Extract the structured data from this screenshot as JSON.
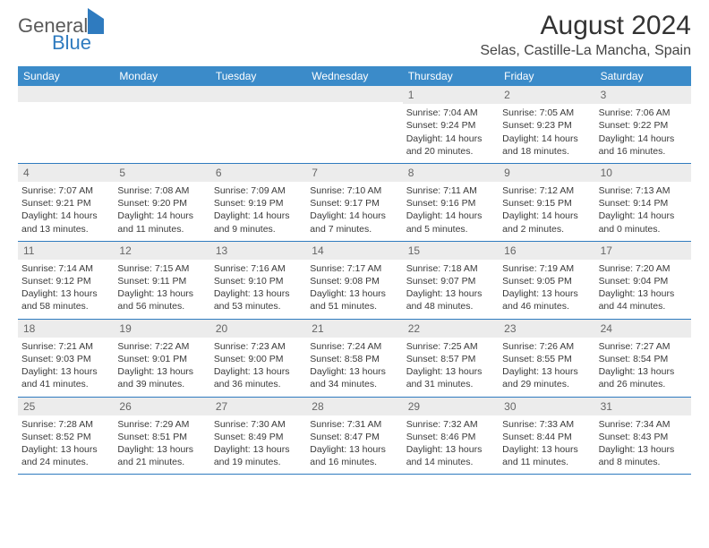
{
  "logo": {
    "line1": "General",
    "line2": "Blue"
  },
  "title": "August 2024",
  "location": "Selas, Castille-La Mancha, Spain",
  "weekdays": [
    "Sunday",
    "Monday",
    "Tuesday",
    "Wednesday",
    "Thursday",
    "Friday",
    "Saturday"
  ],
  "colors": {
    "header_bar": "#3b8bc9",
    "week_divider": "#2f7bbf",
    "daynum_bg": "#ececec",
    "logo_blue": "#2f7bbf"
  },
  "weeks": [
    [
      {
        "n": "",
        "sr": "",
        "ss": "",
        "dl": ""
      },
      {
        "n": "",
        "sr": "",
        "ss": "",
        "dl": ""
      },
      {
        "n": "",
        "sr": "",
        "ss": "",
        "dl": ""
      },
      {
        "n": "",
        "sr": "",
        "ss": "",
        "dl": ""
      },
      {
        "n": "1",
        "sr": "Sunrise: 7:04 AM",
        "ss": "Sunset: 9:24 PM",
        "dl": "Daylight: 14 hours and 20 minutes."
      },
      {
        "n": "2",
        "sr": "Sunrise: 7:05 AM",
        "ss": "Sunset: 9:23 PM",
        "dl": "Daylight: 14 hours and 18 minutes."
      },
      {
        "n": "3",
        "sr": "Sunrise: 7:06 AM",
        "ss": "Sunset: 9:22 PM",
        "dl": "Daylight: 14 hours and 16 minutes."
      }
    ],
    [
      {
        "n": "4",
        "sr": "Sunrise: 7:07 AM",
        "ss": "Sunset: 9:21 PM",
        "dl": "Daylight: 14 hours and 13 minutes."
      },
      {
        "n": "5",
        "sr": "Sunrise: 7:08 AM",
        "ss": "Sunset: 9:20 PM",
        "dl": "Daylight: 14 hours and 11 minutes."
      },
      {
        "n": "6",
        "sr": "Sunrise: 7:09 AM",
        "ss": "Sunset: 9:19 PM",
        "dl": "Daylight: 14 hours and 9 minutes."
      },
      {
        "n": "7",
        "sr": "Sunrise: 7:10 AM",
        "ss": "Sunset: 9:17 PM",
        "dl": "Daylight: 14 hours and 7 minutes."
      },
      {
        "n": "8",
        "sr": "Sunrise: 7:11 AM",
        "ss": "Sunset: 9:16 PM",
        "dl": "Daylight: 14 hours and 5 minutes."
      },
      {
        "n": "9",
        "sr": "Sunrise: 7:12 AM",
        "ss": "Sunset: 9:15 PM",
        "dl": "Daylight: 14 hours and 2 minutes."
      },
      {
        "n": "10",
        "sr": "Sunrise: 7:13 AM",
        "ss": "Sunset: 9:14 PM",
        "dl": "Daylight: 14 hours and 0 minutes."
      }
    ],
    [
      {
        "n": "11",
        "sr": "Sunrise: 7:14 AM",
        "ss": "Sunset: 9:12 PM",
        "dl": "Daylight: 13 hours and 58 minutes."
      },
      {
        "n": "12",
        "sr": "Sunrise: 7:15 AM",
        "ss": "Sunset: 9:11 PM",
        "dl": "Daylight: 13 hours and 56 minutes."
      },
      {
        "n": "13",
        "sr": "Sunrise: 7:16 AM",
        "ss": "Sunset: 9:10 PM",
        "dl": "Daylight: 13 hours and 53 minutes."
      },
      {
        "n": "14",
        "sr": "Sunrise: 7:17 AM",
        "ss": "Sunset: 9:08 PM",
        "dl": "Daylight: 13 hours and 51 minutes."
      },
      {
        "n": "15",
        "sr": "Sunrise: 7:18 AM",
        "ss": "Sunset: 9:07 PM",
        "dl": "Daylight: 13 hours and 48 minutes."
      },
      {
        "n": "16",
        "sr": "Sunrise: 7:19 AM",
        "ss": "Sunset: 9:05 PM",
        "dl": "Daylight: 13 hours and 46 minutes."
      },
      {
        "n": "17",
        "sr": "Sunrise: 7:20 AM",
        "ss": "Sunset: 9:04 PM",
        "dl": "Daylight: 13 hours and 44 minutes."
      }
    ],
    [
      {
        "n": "18",
        "sr": "Sunrise: 7:21 AM",
        "ss": "Sunset: 9:03 PM",
        "dl": "Daylight: 13 hours and 41 minutes."
      },
      {
        "n": "19",
        "sr": "Sunrise: 7:22 AM",
        "ss": "Sunset: 9:01 PM",
        "dl": "Daylight: 13 hours and 39 minutes."
      },
      {
        "n": "20",
        "sr": "Sunrise: 7:23 AM",
        "ss": "Sunset: 9:00 PM",
        "dl": "Daylight: 13 hours and 36 minutes."
      },
      {
        "n": "21",
        "sr": "Sunrise: 7:24 AM",
        "ss": "Sunset: 8:58 PM",
        "dl": "Daylight: 13 hours and 34 minutes."
      },
      {
        "n": "22",
        "sr": "Sunrise: 7:25 AM",
        "ss": "Sunset: 8:57 PM",
        "dl": "Daylight: 13 hours and 31 minutes."
      },
      {
        "n": "23",
        "sr": "Sunrise: 7:26 AM",
        "ss": "Sunset: 8:55 PM",
        "dl": "Daylight: 13 hours and 29 minutes."
      },
      {
        "n": "24",
        "sr": "Sunrise: 7:27 AM",
        "ss": "Sunset: 8:54 PM",
        "dl": "Daylight: 13 hours and 26 minutes."
      }
    ],
    [
      {
        "n": "25",
        "sr": "Sunrise: 7:28 AM",
        "ss": "Sunset: 8:52 PM",
        "dl": "Daylight: 13 hours and 24 minutes."
      },
      {
        "n": "26",
        "sr": "Sunrise: 7:29 AM",
        "ss": "Sunset: 8:51 PM",
        "dl": "Daylight: 13 hours and 21 minutes."
      },
      {
        "n": "27",
        "sr": "Sunrise: 7:30 AM",
        "ss": "Sunset: 8:49 PM",
        "dl": "Daylight: 13 hours and 19 minutes."
      },
      {
        "n": "28",
        "sr": "Sunrise: 7:31 AM",
        "ss": "Sunset: 8:47 PM",
        "dl": "Daylight: 13 hours and 16 minutes."
      },
      {
        "n": "29",
        "sr": "Sunrise: 7:32 AM",
        "ss": "Sunset: 8:46 PM",
        "dl": "Daylight: 13 hours and 14 minutes."
      },
      {
        "n": "30",
        "sr": "Sunrise: 7:33 AM",
        "ss": "Sunset: 8:44 PM",
        "dl": "Daylight: 13 hours and 11 minutes."
      },
      {
        "n": "31",
        "sr": "Sunrise: 7:34 AM",
        "ss": "Sunset: 8:43 PM",
        "dl": "Daylight: 13 hours and 8 minutes."
      }
    ]
  ]
}
